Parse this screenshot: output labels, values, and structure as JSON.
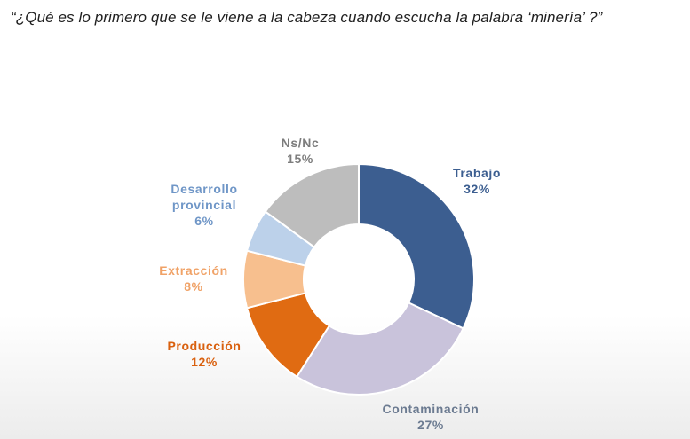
{
  "question": "“¿Qué es lo primero que se le viene a la cabeza cuando escucha la palabra  ‘minería’ ?”",
  "chart_data": {
    "type": "pie",
    "donut": true,
    "title": "",
    "slices": [
      {
        "label": "Trabajo",
        "value": 32,
        "value_label": "32%",
        "color": "#3c5e90",
        "label_color": "#3c5e90"
      },
      {
        "label": "Contaminación",
        "value": 27,
        "value_label": "27%",
        "color": "#c9c3db",
        "label_color": "#6c7b91"
      },
      {
        "label": "Producción",
        "value": 12,
        "value_label": "12%",
        "color": "#e06b12",
        "label_color": "#d9600e"
      },
      {
        "label": "Extracción",
        "value": 8,
        "value_label": "8%",
        "color": "#f7bf8e",
        "label_color": "#f0a267"
      },
      {
        "label": "Desarrollo provincial",
        "value": 6,
        "value_label": "6%",
        "color": "#bcd1ea",
        "label_color": "#6f96c7"
      },
      {
        "label": "Ns/Nc",
        "value": 15,
        "value_label": "15%",
        "color": "#bdbdbd",
        "label_color": "#7d7d7d"
      }
    ]
  }
}
